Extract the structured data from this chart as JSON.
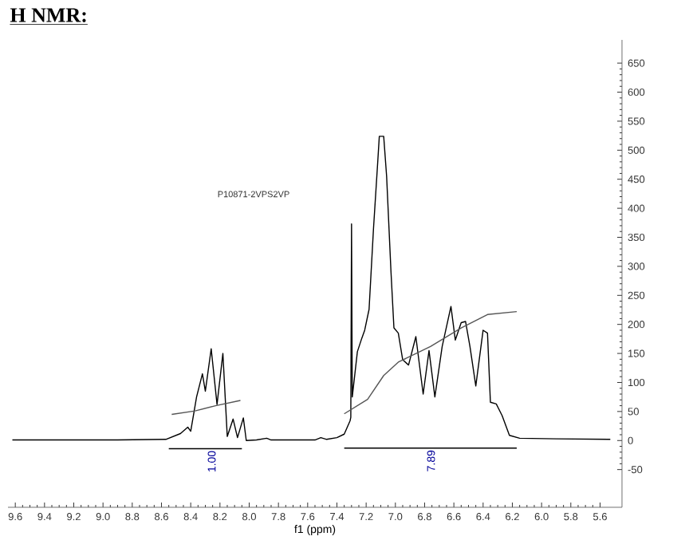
{
  "chart_data": {
    "type": "line",
    "title": "H NMR:",
    "xlabel": "f1 (ppm)",
    "series": [
      {
        "color": "#000000",
        "x": [
          9.62,
          8.9,
          8.57,
          8.47,
          8.42,
          8.4,
          8.36,
          8.32,
          8.3,
          8.26,
          8.22,
          8.18,
          8.15,
          8.11,
          8.08,
          8.04,
          8.02,
          7.95,
          7.88,
          7.85,
          7.55,
          7.51,
          7.47,
          7.4,
          7.35,
          7.31,
          7.305,
          7.3,
          7.295,
          7.26,
          7.23,
          7.21,
          7.18,
          7.15,
          7.12,
          7.11,
          7.08,
          7.06,
          7.03,
          7.01,
          6.98,
          6.95,
          6.91,
          6.86,
          6.81,
          6.77,
          6.73,
          6.68,
          6.62,
          6.59,
          6.55,
          6.52,
          6.49,
          6.45,
          6.4,
          6.37,
          6.35,
          6.31,
          6.27,
          6.22,
          6.15,
          5.9,
          5.53
        ],
        "values": [
          1,
          1,
          2,
          12,
          23,
          16,
          75,
          115,
          85,
          158,
          62,
          150,
          7,
          37,
          5,
          39,
          0,
          1,
          4,
          1,
          1,
          5,
          2,
          5,
          11,
          34,
          40,
          373,
          75,
          153,
          176,
          190,
          226,
          364,
          483,
          524,
          524,
          455,
          290,
          194,
          185,
          139,
          130,
          179,
          80,
          155,
          75,
          162,
          231,
          173,
          203,
          205,
          162,
          94,
          190,
          185,
          66,
          63,
          43,
          9,
          4,
          3,
          2
        ]
      },
      {
        "color": "#555555",
        "x": [
          8.53,
          8.37,
          8.23,
          8.06
        ],
        "values": [
          45,
          51,
          60,
          69
        ]
      },
      {
        "color": "#555555",
        "x": [
          7.35,
          7.19,
          7.08,
          6.98,
          6.76,
          6.55,
          6.37,
          6.17
        ],
        "values": [
          46,
          71,
          112,
          135,
          162,
          194,
          217,
          222
        ]
      },
      {
        "color": "#000000",
        "x": [
          8.55,
          8.05
        ],
        "values": [
          -14,
          -14
        ]
      },
      {
        "color": "#000000",
        "x": [
          7.35,
          6.17
        ],
        "values": [
          -13,
          -13
        ]
      }
    ],
    "annotations": [
      "P10871-2VPS2VP",
      {
        "text": "1.00",
        "x": 8.3,
        "y": -14
      },
      {
        "text": "7.89",
        "x": 6.8,
        "y": -13
      }
    ],
    "xlim": [
      9.65,
      5.45
    ],
    "ylim": [
      -115,
      690
    ],
    "xticks": [
      9.6,
      9.4,
      9.2,
      {
        "value": 9,
        "label": "9.0"
      },
      8.8,
      8.6,
      8.4,
      8.2,
      {
        "value": 8,
        "label": "8.0"
      },
      7.8,
      7.6,
      7.4,
      7.2,
      {
        "value": 7,
        "label": "7.0"
      },
      6.8,
      6.6,
      6.4,
      6.2,
      {
        "value": 6,
        "label": "6.0"
      },
      5.8,
      5.6
    ],
    "yticks": [
      -50,
      0,
      50,
      100,
      150,
      200,
      250,
      300,
      350,
      400,
      450,
      500,
      550,
      600,
      650
    ],
    "marker": "none",
    "line_style": "solid"
  }
}
